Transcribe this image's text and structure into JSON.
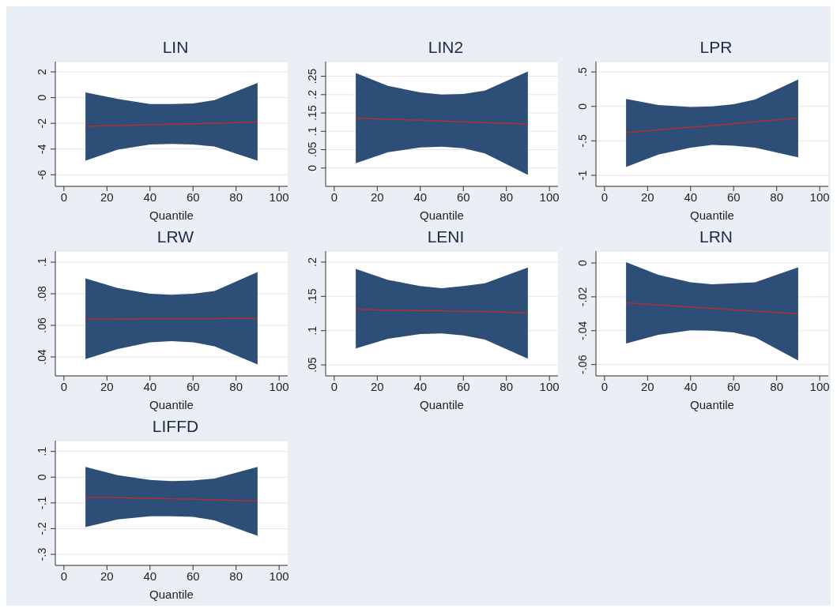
{
  "chart_data": [
    {
      "type": "line",
      "title": "LIN",
      "xlabel": "Quantile",
      "xlim": [
        -4,
        104
      ],
      "xticks": [
        0,
        20,
        40,
        60,
        80,
        100
      ],
      "ylim": [
        -6.9,
        2.8
      ],
      "yticks": [
        -6,
        -4,
        -2,
        0,
        2
      ],
      "grid": "y",
      "x": [
        10,
        25,
        40,
        50,
        60,
        70,
        90
      ],
      "series": [
        {
          "color": "#b03030",
          "values": [
            -2.23,
            -2.17,
            -2.11,
            -2.07,
            -2.03,
            -1.99,
            -1.9
          ],
          "lower": [
            -4.9,
            -4.05,
            -3.65,
            -3.6,
            -3.65,
            -3.8,
            -4.9
          ],
          "upper": [
            0.4,
            -0.1,
            -0.5,
            -0.5,
            -0.45,
            -0.2,
            1.15
          ]
        }
      ]
    },
    {
      "type": "line",
      "title": "LIN2",
      "xlabel": "Quantile",
      "xlim": [
        -4,
        104
      ],
      "xticks": [
        0,
        20,
        40,
        60,
        80,
        100
      ],
      "ylim": [
        -0.05,
        0.29
      ],
      "yticks": [
        0,
        {
          "value": 0.05,
          "label": ".05"
        },
        {
          "value": 0.1,
          "label": ".1"
        },
        {
          "value": 0.15,
          "label": ".15"
        },
        {
          "value": 0.2,
          "label": ".2"
        },
        {
          "value": 0.25,
          "label": ".25"
        }
      ],
      "grid": "y",
      "x": [
        10,
        25,
        40,
        50,
        60,
        70,
        90
      ],
      "series": [
        {
          "color": "#b03030",
          "values": [
            0.136,
            0.133,
            0.13,
            0.128,
            0.126,
            0.124,
            0.12
          ],
          "lower": [
            0.013,
            0.043,
            0.056,
            0.058,
            0.054,
            0.04,
            -0.019
          ],
          "upper": [
            0.259,
            0.224,
            0.206,
            0.2,
            0.202,
            0.211,
            0.263
          ]
        }
      ]
    },
    {
      "type": "line",
      "title": "LPR",
      "xlabel": "Quantile",
      "xlim": [
        -4,
        104
      ],
      "xticks": [
        0,
        20,
        40,
        60,
        80,
        100
      ],
      "ylim": [
        -1.16,
        0.65
      ],
      "yticks": [
        -1,
        {
          "value": -0.5,
          "label": "-.5"
        },
        0,
        {
          "value": 0.5,
          "label": ".5"
        }
      ],
      "grid": "y",
      "x": [
        10,
        25,
        40,
        50,
        60,
        70,
        90
      ],
      "series": [
        {
          "color": "#b03030",
          "values": [
            -0.38,
            -0.34,
            -0.3,
            -0.28,
            -0.25,
            -0.22,
            -0.17
          ],
          "lower": [
            -0.88,
            -0.7,
            -0.6,
            -0.56,
            -0.57,
            -0.6,
            -0.74
          ],
          "upper": [
            0.11,
            0.02,
            -0.01,
            0,
            0.03,
            0.1,
            0.39
          ]
        }
      ]
    },
    {
      "type": "line",
      "title": "LRW",
      "xlabel": "Quantile",
      "xlim": [
        -4,
        104
      ],
      "xticks": [
        0,
        20,
        40,
        60,
        80,
        100
      ],
      "ylim": [
        0.028,
        0.107
      ],
      "yticks": [
        {
          "value": 0.04,
          "label": ".04"
        },
        {
          "value": 0.06,
          "label": ".06"
        },
        {
          "value": 0.08,
          "label": ".08"
        },
        {
          "value": 0.1,
          "label": ".1"
        }
      ],
      "grid": "y",
      "x": [
        10,
        25,
        40,
        50,
        60,
        70,
        90
      ],
      "series": [
        {
          "color": "#b03030",
          "values": [
            0.064,
            0.064,
            0.0642,
            0.0642,
            0.0643,
            0.0643,
            0.0645
          ],
          "lower": [
            0.0386,
            0.045,
            0.0493,
            0.05,
            0.0493,
            0.0468,
            0.0352
          ],
          "upper": [
            0.0898,
            0.0836,
            0.08,
            0.0794,
            0.08,
            0.0818,
            0.0938
          ]
        }
      ]
    },
    {
      "type": "line",
      "title": "LENI",
      "xlabel": "Quantile",
      "xlim": [
        -4,
        104
      ],
      "xticks": [
        0,
        20,
        40,
        60,
        80,
        100
      ],
      "ylim": [
        0.034,
        0.216
      ],
      "yticks": [
        {
          "value": 0.05,
          "label": ".05"
        },
        {
          "value": 0.1,
          "label": ".1"
        },
        {
          "value": 0.15,
          "label": ".15"
        },
        {
          "value": 0.2,
          "label": ".2"
        }
      ],
      "grid": "y",
      "x": [
        10,
        25,
        40,
        50,
        60,
        70,
        90
      ],
      "series": [
        {
          "color": "#b03030",
          "values": [
            0.131,
            0.13,
            0.129,
            0.129,
            0.128,
            0.128,
            0.126
          ],
          "lower": [
            0.074,
            0.088,
            0.095,
            0.096,
            0.093,
            0.087,
            0.059
          ],
          "upper": [
            0.19,
            0.174,
            0.165,
            0.162,
            0.165,
            0.169,
            0.192
          ]
        }
      ]
    },
    {
      "type": "line",
      "title": "LRN",
      "xlabel": "Quantile",
      "xlim": [
        -4,
        104
      ],
      "xticks": [
        0,
        20,
        40,
        60,
        80,
        100
      ],
      "ylim": [
        -0.0667,
        0.007
      ],
      "yticks": [
        {
          "value": -0.06,
          "label": "-.06"
        },
        {
          "value": -0.04,
          "label": "-.04"
        },
        {
          "value": -0.02,
          "label": "-.02"
        },
        0
      ],
      "grid": "y",
      "x": [
        10,
        25,
        40,
        50,
        60,
        70,
        90
      ],
      "series": [
        {
          "color": "#b03030",
          "values": [
            -0.0236,
            -0.0248,
            -0.026,
            -0.0268,
            -0.0276,
            -0.0284,
            -0.03
          ],
          "lower": [
            -0.0476,
            -0.0424,
            -0.0398,
            -0.04,
            -0.041,
            -0.044,
            -0.0576
          ],
          "upper": [
            0.0005,
            -0.007,
            -0.0114,
            -0.0126,
            -0.012,
            -0.0114,
            -0.0026
          ]
        }
      ]
    },
    {
      "type": "line",
      "title": "LIFFD",
      "xlabel": "Quantile",
      "xlim": [
        -4,
        104
      ],
      "xticks": [
        0,
        20,
        40,
        60,
        80,
        100
      ],
      "ylim": [
        -0.343,
        0.142
      ],
      "yticks": [
        {
          "value": -0.3,
          "label": "-.3"
        },
        {
          "value": -0.2,
          "label": "-.2"
        },
        {
          "value": -0.1,
          "label": "-.1"
        },
        0,
        {
          "value": 0.1,
          "label": ".1"
        }
      ],
      "grid": "y",
      "x": [
        10,
        25,
        40,
        50,
        60,
        70,
        90
      ],
      "series": [
        {
          "color": "#b03030",
          "values": [
            -0.078,
            -0.08,
            -0.082,
            -0.084,
            -0.086,
            -0.088,
            -0.093
          ],
          "lower": [
            -0.194,
            -0.164,
            -0.152,
            -0.152,
            -0.154,
            -0.168,
            -0.228
          ],
          "upper": [
            0.04,
            0.008,
            -0.011,
            -0.015,
            -0.013,
            -0.005,
            0.04
          ]
        }
      ]
    }
  ]
}
